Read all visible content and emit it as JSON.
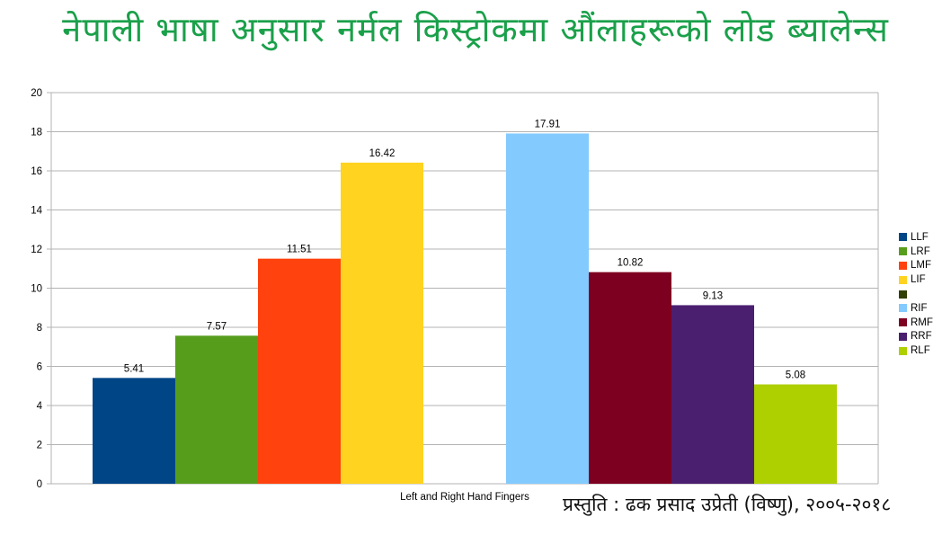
{
  "chart_data": {
    "type": "bar",
    "title": "नेपाली भाषा अनुसार नर्मल किस्ट्रोकमा औंलाहरूको लोड ब्यालेन्स",
    "xlabel": "Left and Right Hand Fingers",
    "ylabel": "",
    "ylim": [
      0,
      20
    ],
    "yticks": [
      0,
      2,
      4,
      6,
      8,
      10,
      12,
      14,
      16,
      18,
      20
    ],
    "grid": true,
    "legend_position": "right",
    "categories": [
      "LLF",
      "LRF",
      "LMF",
      "LIF",
      "",
      "RIF",
      "RMF",
      "RRF",
      "RLF"
    ],
    "series": [
      {
        "name": "LLF",
        "value": 5.41,
        "label": "5.41",
        "color": "#004586"
      },
      {
        "name": "LRF",
        "value": 7.57,
        "label": "7.57",
        "color": "#579d1c"
      },
      {
        "name": "LMF",
        "value": 11.51,
        "label": "11.51",
        "color": "#ff420e"
      },
      {
        "name": "LIF",
        "value": 16.42,
        "label": "16.42",
        "color": "#ffd320"
      },
      {
        "name": "",
        "value": null,
        "label": "",
        "color": "#314004"
      },
      {
        "name": "RIF",
        "value": 17.91,
        "label": "17.91",
        "color": "#83caff"
      },
      {
        "name": "RMF",
        "value": 10.82,
        "label": "10.82",
        "color": "#7e0021"
      },
      {
        "name": "RRF",
        "value": 9.13,
        "label": "9.13",
        "color": "#4b1f6f"
      },
      {
        "name": "RLF",
        "value": 5.08,
        "label": "5.08",
        "color": "#aecf00"
      }
    ]
  },
  "credit": "प्रस्तुति : ढक प्रसाद उप्रेती (विष्णु), २००५-२०१८"
}
